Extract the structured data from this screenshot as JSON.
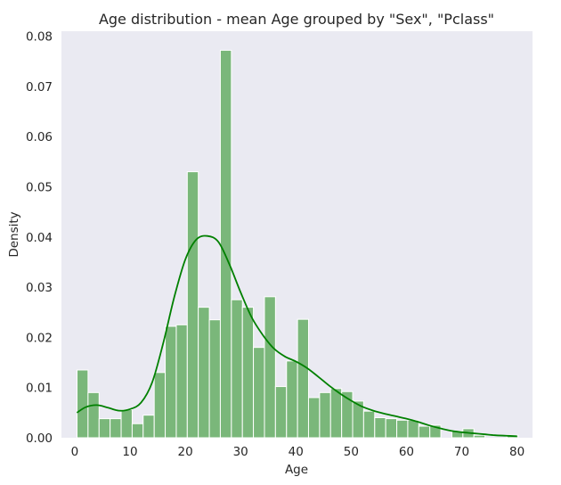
{
  "chart_data": {
    "type": "bar",
    "title": "Age distribution - mean Age grouped by \"Sex\", \"Pclass\"",
    "xlabel": "Age",
    "ylabel": "Density",
    "xlim": [
      -2.4,
      82.8
    ],
    "ylim": [
      0,
      0.081
    ],
    "x_ticks": [
      0,
      10,
      20,
      30,
      40,
      50,
      60,
      70,
      80
    ],
    "y_ticks": [
      0.0,
      0.01,
      0.02,
      0.03,
      0.04,
      0.05,
      0.06,
      0.07,
      0.08
    ],
    "y_tick_labels": [
      "0.00",
      "0.01",
      "0.02",
      "0.03",
      "0.04",
      "0.05",
      "0.06",
      "0.07",
      "0.08"
    ],
    "grid": false,
    "background_color": "#eaeaf2",
    "bar_color": "#7ab77a",
    "line_color": "#008000",
    "bin_edges": [
      0.42,
      2.41,
      4.41,
      6.4,
      8.4,
      10.39,
      12.38,
      14.38,
      16.37,
      18.37,
      20.36,
      22.35,
      24.35,
      26.34,
      28.34,
      30.33,
      32.32,
      34.32,
      36.31,
      38.31,
      40.3,
      42.29,
      44.29,
      46.28,
      48.28,
      50.27,
      52.26,
      54.26,
      56.25,
      58.25,
      60.24,
      62.23,
      64.23,
      66.22,
      68.22,
      70.21,
      72.2,
      74.2,
      76.19,
      78.19,
      80.18
    ],
    "values": [
      0.0135,
      0.009,
      0.0038,
      0.0038,
      0.0056,
      0.0028,
      0.0045,
      0.013,
      0.0222,
      0.0225,
      0.053,
      0.026,
      0.0235,
      0.0772,
      0.0275,
      0.026,
      0.018,
      0.0281,
      0.0102,
      0.0153,
      0.0236,
      0.008,
      0.009,
      0.0098,
      0.0092,
      0.0073,
      0.0053,
      0.004,
      0.0038,
      0.0035,
      0.0035,
      0.0023,
      0.0025,
      0.0,
      0.0013,
      0.0018,
      0.0005,
      0.0,
      0.0,
      0.0005
    ],
    "kde": {
      "x": [
        0.4,
        2,
        4,
        6,
        8,
        10,
        12,
        14,
        16,
        18,
        20,
        22,
        24,
        26,
        28,
        30,
        32,
        34,
        36,
        38,
        40,
        42,
        44,
        46,
        48,
        50,
        52,
        54,
        56,
        58,
        60,
        62,
        64,
        66,
        68,
        70,
        72,
        74,
        76,
        78,
        80
      ],
      "y": [
        0.005,
        0.0061,
        0.0065,
        0.006,
        0.0054,
        0.0057,
        0.007,
        0.011,
        0.0188,
        0.028,
        0.0355,
        0.0395,
        0.0402,
        0.039,
        0.0345,
        0.029,
        0.024,
        0.0205,
        0.0178,
        0.0162,
        0.0152,
        0.0139,
        0.0122,
        0.0104,
        0.0088,
        0.0074,
        0.0062,
        0.0054,
        0.0048,
        0.0043,
        0.0038,
        0.0032,
        0.0025,
        0.0019,
        0.0014,
        0.0011,
        0.0009,
        0.0007,
        0.0005,
        0.0004,
        0.0003
      ]
    }
  }
}
